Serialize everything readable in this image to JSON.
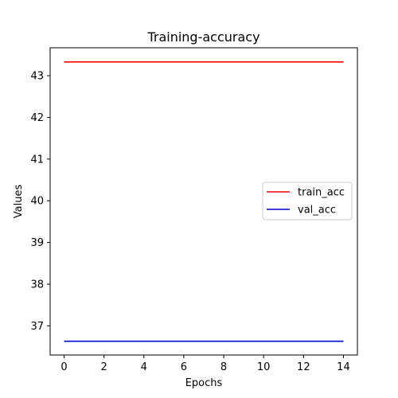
{
  "chart_data": {
    "type": "line",
    "title": "Training-accuracy",
    "xlabel": "Epochs",
    "ylabel": "Values",
    "x": [
      0,
      1,
      2,
      3,
      4,
      5,
      6,
      7,
      8,
      9,
      10,
      11,
      12,
      13,
      14
    ],
    "series": [
      {
        "name": "train_acc",
        "color": "#ff0000",
        "values": [
          43.33,
          43.33,
          43.33,
          43.33,
          43.33,
          43.33,
          43.33,
          43.33,
          43.33,
          43.33,
          43.33,
          43.33,
          43.33,
          43.33,
          43.33
        ]
      },
      {
        "name": "val_acc",
        "color": "#0000cc",
        "values": [
          36.63,
          36.63,
          36.63,
          36.63,
          36.63,
          36.63,
          36.63,
          36.63,
          36.63,
          36.63,
          36.63,
          36.63,
          36.63,
          36.63,
          36.63
        ]
      }
    ],
    "xlim": [
      -0.7,
      14.7
    ],
    "ylim": [
      36.3,
      43.67
    ],
    "xticks": [
      "0",
      "2",
      "4",
      "6",
      "8",
      "10",
      "12",
      "14"
    ],
    "yticks": [
      "37",
      "38",
      "39",
      "40",
      "41",
      "42",
      "43"
    ],
    "grid": false,
    "legend_position": "center-right"
  }
}
